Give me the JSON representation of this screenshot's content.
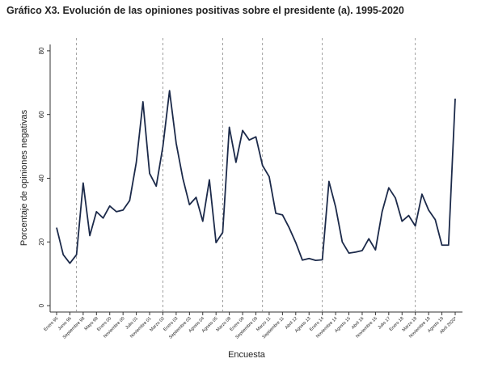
{
  "chart_data": {
    "type": "line",
    "title": "Gráfico X3. Evolución de las opiniones positivas sobre el presidente (a). 1995-2020",
    "x_label": "Encuesta",
    "y_label": "Porcentaje de opiniones negativas",
    "categories": [
      "Enero 95",
      null,
      "Junio 96",
      null,
      "Septiembre 98",
      null,
      "Mayo 99",
      null,
      "Enero 00",
      null,
      "Noviembre 00",
      null,
      "Julio 01",
      null,
      "Noviembre 01",
      null,
      "Marzo 02",
      null,
      "Enero 03",
      null,
      "Septiembre 03",
      null,
      "Agosto 04",
      null,
      "Agosto 05",
      null,
      "Marzo 08",
      null,
      "Enero 09",
      null,
      "Septiembre 09",
      null,
      "Marzo 11",
      null,
      "Septiembre 11",
      null,
      "Abril 12",
      null,
      "Agosto 13",
      null,
      "Enero 14",
      null,
      "Noviembre 14",
      null,
      "Agosto 15",
      null,
      "Abril 16",
      null,
      "Noviembre 16",
      null,
      "Julio 17",
      null,
      "Enero 18",
      null,
      "Marzo 18",
      null,
      "Noviembre 18",
      null,
      "Agosto 19",
      null,
      "Abril 2020*"
    ],
    "series": [
      {
        "name": "Opiniones",
        "color": "#1c2a4a",
        "values": [
          24.5,
          16,
          13.3,
          16,
          38.5,
          22,
          29.5,
          27.5,
          31.3,
          29.5,
          30,
          33,
          45,
          64,
          41.5,
          37.5,
          50,
          67.5,
          51,
          40,
          31.7,
          34,
          26.5,
          39.5,
          19.8,
          23,
          56,
          45,
          55,
          52,
          53,
          44,
          40.5,
          29,
          28.5,
          24.5,
          19.8,
          14.3,
          14.8,
          14.2,
          14.4,
          39,
          31,
          20,
          16.5,
          16.8,
          17.3,
          21,
          17.5,
          29.5,
          37,
          33.8,
          26.5,
          28.3,
          25,
          35,
          30,
          27,
          19,
          19,
          65
        ]
      }
    ],
    "reference_lines": [
      3,
      16,
      25,
      31,
      40,
      54
    ],
    "ylim": [
      -2,
      82
    ],
    "yticks": [
      0,
      20,
      40,
      60,
      80
    ]
  }
}
